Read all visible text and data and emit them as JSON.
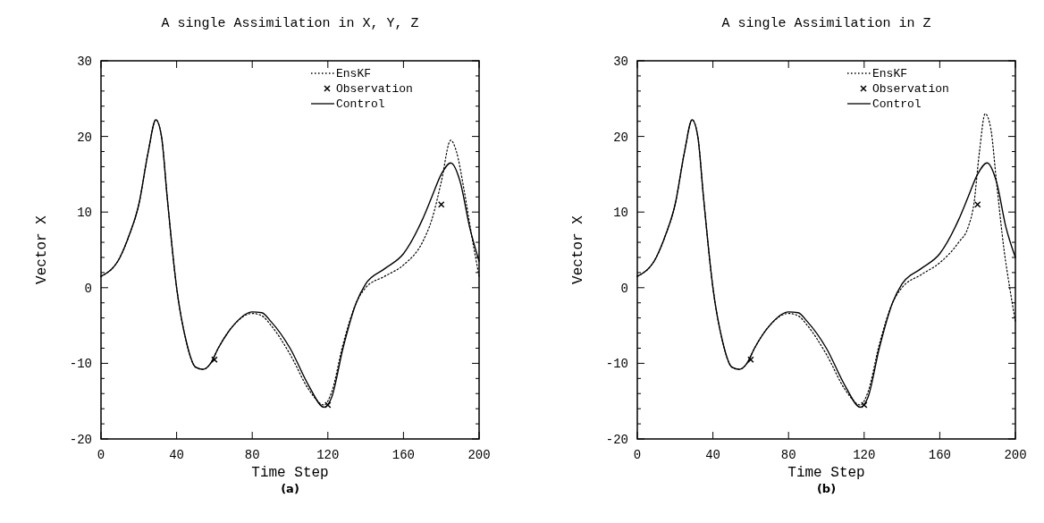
{
  "chart_data": [
    {
      "type": "line",
      "title": "A single Assimilation in X, Y, Z",
      "xlabel": "Time Step",
      "ylabel": "Vector X",
      "annotations": [
        "(a)"
      ],
      "legend": "top right",
      "xlim": [
        0,
        200
      ],
      "ylim": [
        -20,
        30
      ],
      "xticks": [
        0,
        40,
        80,
        120,
        160,
        200
      ],
      "yticks": [
        -20,
        {
          "value": -18,
          "label": null
        },
        {
          "value": -16,
          "label": null
        },
        {
          "value": -14,
          "label": null
        },
        {
          "value": -12,
          "label": null
        },
        -10,
        {
          "value": -8,
          "label": null
        },
        {
          "value": -6,
          "label": null
        },
        {
          "value": -4,
          "label": null
        },
        {
          "value": -2,
          "label": null
        },
        0,
        {
          "value": 2,
          "label": null
        },
        {
          "value": 4,
          "label": null
        },
        {
          "value": 6,
          "label": null
        },
        {
          "value": 8,
          "label": null
        },
        10,
        {
          "value": 12,
          "label": null
        },
        {
          "value": 14,
          "label": null
        },
        {
          "value": 16,
          "label": null
        },
        {
          "value": 18,
          "label": null
        },
        20,
        {
          "value": 22,
          "label": null
        },
        {
          "value": 24,
          "label": null
        },
        {
          "value": 26,
          "label": null
        },
        {
          "value": 28,
          "label": null
        },
        30
      ],
      "series": [
        {
          "name": "EnsKF",
          "color": "#000000",
          "line_style": "dotted",
          "marker": "none",
          "x": [
            0,
            10,
            15,
            20,
            25,
            29,
            32,
            35,
            40,
            45,
            50,
            54,
            58,
            62,
            70,
            80,
            85,
            90,
            100,
            110,
            118,
            122,
            128,
            135,
            140,
            150,
            160,
            170,
            175,
            180,
            185,
            188,
            192,
            196,
            200
          ],
          "values": [
            1.5,
            4,
            7,
            11,
            18,
            22.2,
            20,
            12,
            0,
            -7,
            -10.5,
            -10.8,
            -10,
            -8,
            -5,
            -3.4,
            -3.7,
            -5,
            -8.8,
            -13.5,
            -15.5,
            -13.8,
            -7.5,
            -2,
            0,
            1.5,
            3,
            6,
            9,
            14,
            19.5,
            18,
            13,
            7,
            1.5
          ]
        },
        {
          "name": "Observation",
          "type": "scatter",
          "color": "#000000",
          "marker": "cross",
          "x": [
            60,
            120,
            180
          ],
          "values": [
            -9.5,
            -15.5,
            11
          ]
        },
        {
          "name": "Control",
          "color": "#000000",
          "line_style": "solid",
          "marker": "none",
          "x": [
            0,
            10,
            15,
            20,
            25,
            29,
            32,
            35,
            40,
            45,
            50,
            54,
            58,
            62,
            70,
            80,
            85,
            90,
            100,
            110,
            118,
            122,
            128,
            135,
            140,
            150,
            160,
            170,
            175,
            180,
            185,
            190,
            195,
            200
          ],
          "values": [
            1.5,
            4,
            7,
            11,
            18,
            22.2,
            20,
            12,
            0,
            -7,
            -10.5,
            -10.8,
            -10,
            -8,
            -5,
            -3.2,
            -3.3,
            -4.5,
            -8,
            -13,
            -15.8,
            -14.5,
            -8,
            -2,
            0.5,
            2.5,
            4.5,
            9,
            12,
            15,
            16.5,
            14,
            8,
            3.5
          ]
        }
      ]
    },
    {
      "type": "line",
      "title": "A single Assimilation in Z",
      "xlabel": "Time Step",
      "ylabel": "Vector X",
      "annotations": [
        "(b)"
      ],
      "legend": "top right",
      "xlim": [
        0,
        200
      ],
      "ylim": [
        -20,
        30
      ],
      "xticks": [
        0,
        40,
        80,
        120,
        160,
        200
      ],
      "yticks": [
        -20,
        {
          "value": -18,
          "label": null
        },
        {
          "value": -16,
          "label": null
        },
        {
          "value": -14,
          "label": null
        },
        {
          "value": -12,
          "label": null
        },
        -10,
        {
          "value": -8,
          "label": null
        },
        {
          "value": -6,
          "label": null
        },
        {
          "value": -4,
          "label": null
        },
        {
          "value": -2,
          "label": null
        },
        0,
        {
          "value": 2,
          "label": null
        },
        {
          "value": 4,
          "label": null
        },
        {
          "value": 6,
          "label": null
        },
        {
          "value": 8,
          "label": null
        },
        10,
        {
          "value": 12,
          "label": null
        },
        {
          "value": 14,
          "label": null
        },
        {
          "value": 16,
          "label": null
        },
        {
          "value": 18,
          "label": null
        },
        20,
        {
          "value": 22,
          "label": null
        },
        {
          "value": 24,
          "label": null
        },
        {
          "value": 26,
          "label": null
        },
        {
          "value": 28,
          "label": null
        },
        30
      ],
      "series": [
        {
          "name": "EnsKF",
          "color": "#000000",
          "line_style": "dotted",
          "marker": "none",
          "x": [
            0,
            10,
            15,
            20,
            25,
            29,
            32,
            35,
            40,
            45,
            50,
            54,
            58,
            62,
            70,
            80,
            85,
            90,
            100,
            110,
            118,
            122,
            128,
            135,
            140,
            150,
            160,
            170,
            175,
            178,
            181,
            184,
            187,
            190,
            194,
            197,
            200
          ],
          "values": [
            1.5,
            4,
            7,
            11,
            18,
            22.2,
            20,
            12,
            0,
            -7,
            -10.5,
            -10.8,
            -10,
            -8,
            -5,
            -3.4,
            -3.7,
            -5,
            -8.8,
            -13.5,
            -15.5,
            -13.8,
            -7.5,
            -2,
            0,
            1.7,
            3.3,
            6,
            8,
            11,
            18,
            23,
            21,
            14,
            5,
            0,
            -4.5
          ]
        },
        {
          "name": "Observation",
          "type": "scatter",
          "color": "#000000",
          "marker": "cross",
          "x": [
            60,
            120,
            180
          ],
          "values": [
            -9.5,
            -15.5,
            11
          ]
        },
        {
          "name": "Control",
          "color": "#000000",
          "line_style": "solid",
          "marker": "none",
          "x": [
            0,
            10,
            15,
            20,
            25,
            29,
            32,
            35,
            40,
            45,
            50,
            54,
            58,
            62,
            70,
            80,
            85,
            90,
            100,
            110,
            118,
            122,
            128,
            135,
            140,
            150,
            160,
            170,
            175,
            180,
            185,
            190,
            195,
            200
          ],
          "values": [
            1.5,
            4,
            7,
            11,
            18,
            22.2,
            20,
            12,
            0,
            -7,
            -10.5,
            -10.8,
            -10,
            -8,
            -5,
            -3.2,
            -3.3,
            -4.5,
            -8,
            -13,
            -15.8,
            -14.5,
            -8,
            -2,
            0.5,
            2.5,
            4.5,
            9,
            12,
            15,
            16.5,
            14,
            8,
            4
          ]
        }
      ]
    }
  ]
}
